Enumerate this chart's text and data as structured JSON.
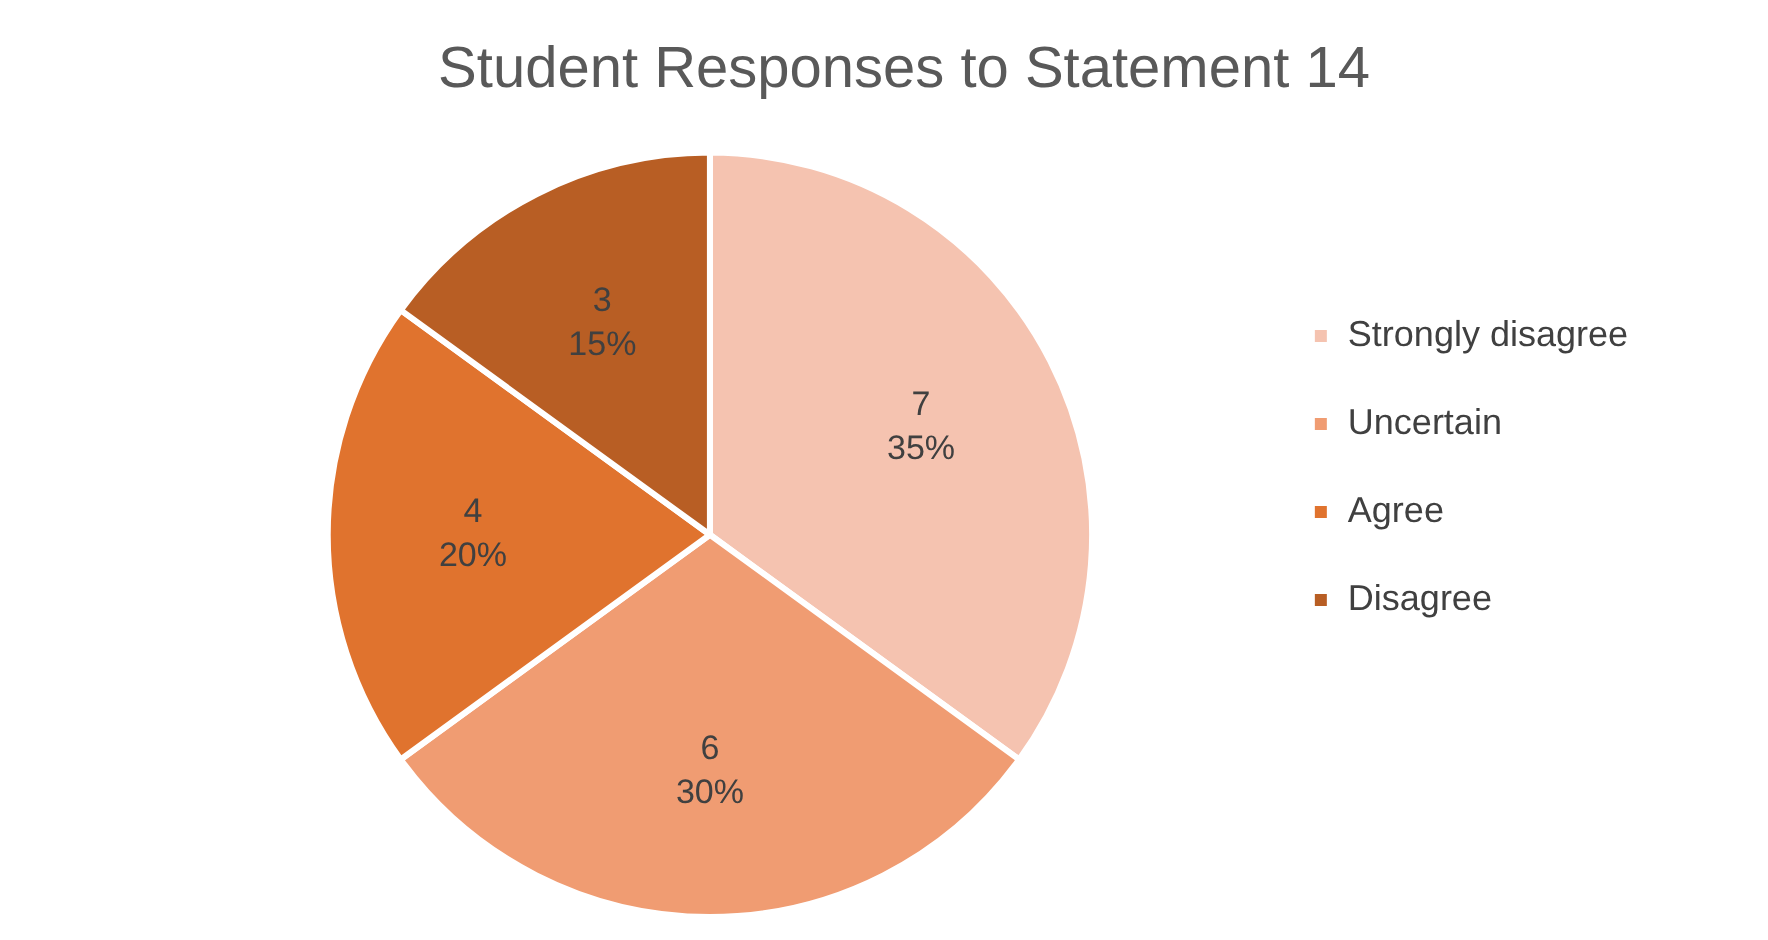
{
  "chart_data": {
    "type": "pie",
    "title": "Student Responses to Statement 14",
    "categories": [
      "Strongly disagree",
      "Uncertain",
      "Agree",
      "Disagree"
    ],
    "values": [
      7,
      6,
      4,
      3
    ],
    "colors": [
      "#f5c3b0",
      "#f09c72",
      "#e0732e",
      "#b85e24"
    ],
    "value_labels": [
      "7\n35%",
      "6\n30%",
      "4\n20%",
      "3\n15%"
    ],
    "legend": "right"
  }
}
